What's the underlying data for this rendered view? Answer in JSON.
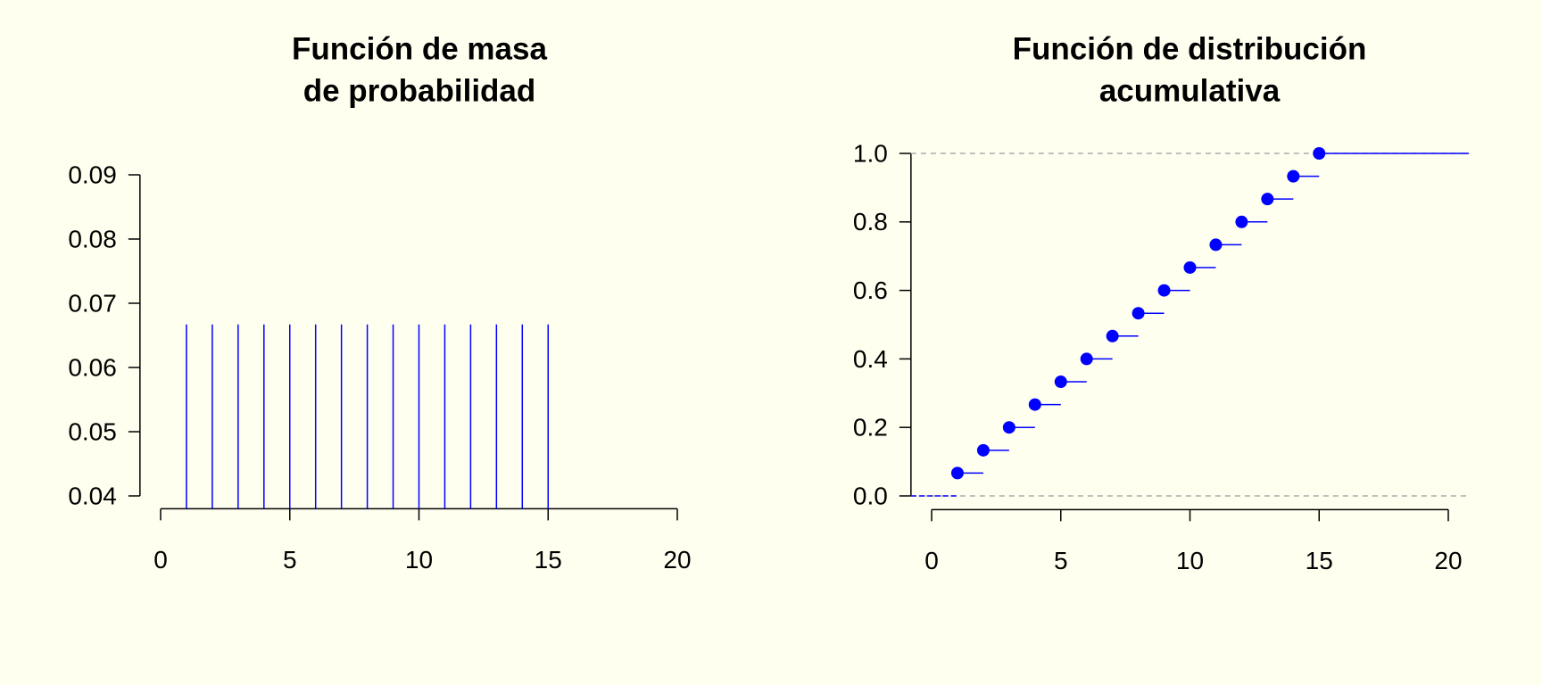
{
  "chart_data": [
    {
      "type": "stem",
      "title": [
        "Función de masa",
        "de probabilidad"
      ],
      "x": [
        1,
        2,
        3,
        4,
        5,
        6,
        7,
        8,
        9,
        10,
        11,
        12,
        13,
        14,
        15
      ],
      "values": [
        0.0667,
        0.0667,
        0.0667,
        0.0667,
        0.0667,
        0.0667,
        0.0667,
        0.0667,
        0.0667,
        0.0667,
        0.0667,
        0.0667,
        0.0667,
        0.0667,
        0.0667
      ],
      "color": "#0000ff",
      "xlim": [
        0,
        20
      ],
      "xticks": [
        0,
        5,
        10,
        15,
        20
      ],
      "ylim": [
        0.04,
        0.09
      ],
      "yticks": [
        0.04,
        0.05,
        0.06,
        0.07,
        0.08,
        0.09
      ]
    },
    {
      "type": "step",
      "title": [
        "Función de distribución",
        "acumulativa"
      ],
      "x": [
        1,
        2,
        3,
        4,
        5,
        6,
        7,
        8,
        9,
        10,
        11,
        12,
        13,
        14,
        15
      ],
      "values": [
        0.0667,
        0.1333,
        0.2,
        0.2667,
        0.3333,
        0.4,
        0.4667,
        0.5333,
        0.6,
        0.6667,
        0.7333,
        0.8,
        0.8667,
        0.9333,
        1
      ],
      "color": "#0000ff",
      "xlim": [
        0,
        20
      ],
      "xticks": [
        0,
        5,
        10,
        15,
        20
      ],
      "ylim": [
        0,
        1
      ],
      "yticks": [
        {
          "value": 0,
          "label": "0.0"
        },
        0.2,
        0.4,
        0.6,
        0.8,
        {
          "value": 1,
          "label": "1.0"
        }
      ],
      "hlines": [
        0,
        1
      ]
    }
  ]
}
